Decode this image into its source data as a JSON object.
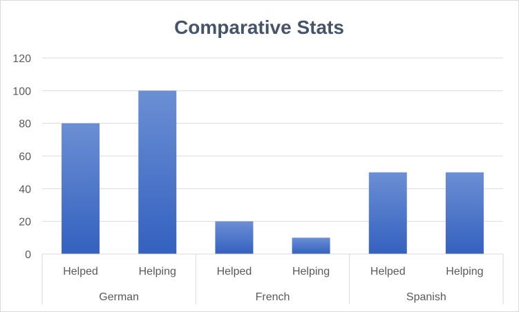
{
  "chart_data": {
    "type": "bar",
    "title": "Comparative Stats",
    "xlabel": "",
    "ylabel": "",
    "ylim": [
      0,
      120
    ],
    "yticks": [
      0,
      20,
      40,
      60,
      80,
      100,
      120
    ],
    "grid": true,
    "legend": "none",
    "groups": [
      {
        "label": "German",
        "categories": [
          "Helped",
          "Helping"
        ],
        "values": [
          80,
          100
        ]
      },
      {
        "label": "French",
        "categories": [
          "Helped",
          "Helping"
        ],
        "values": [
          20,
          10
        ]
      },
      {
        "label": "Spanish",
        "categories": [
          "Helped",
          "Helping"
        ],
        "values": [
          50,
          50
        ]
      }
    ],
    "colors": {
      "bar_top": "#6b8fd4",
      "bar_bottom": "#3461bf",
      "grid": "#d9d9d9",
      "axis_text": "#595959",
      "title": "#44546a"
    }
  }
}
